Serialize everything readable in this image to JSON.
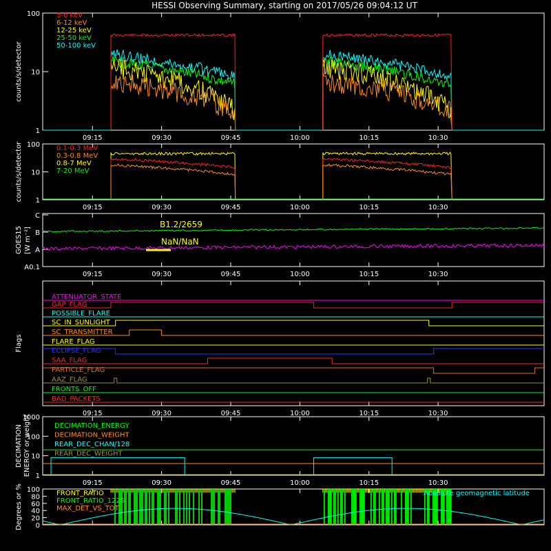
{
  "title": "HESSI Observing Summary, starting on 2017/05/26 09:04:12 UT",
  "time_ticks": [
    "09:15",
    "09:30",
    "09:45",
    "10:00",
    "10:15",
    "10:30"
  ],
  "colors": {
    "red": "#ff2020",
    "orange": "#ff8c1a",
    "yellow": "#ffff00",
    "green": "#00ff00",
    "cyan": "#00ffff",
    "magenta": "#ff00ff",
    "blue": "#2233ff",
    "olive": "#a09030",
    "frame": "#ffffff",
    "brown": "#e07020"
  },
  "chart_data": [
    {
      "type": "line",
      "ylabel": "counts/s/detector",
      "y_ticks": [
        "100",
        "10",
        "1"
      ],
      "ylim": [
        1,
        100
      ],
      "scale": "log",
      "legend_placement": "top-left",
      "series": [
        {
          "name": "3-6 keV",
          "color": "#ff2020",
          "level": 42,
          "segments": [
            [
              "09:19",
              "09:46"
            ],
            [
              "10:05",
              "10:33"
            ]
          ]
        },
        {
          "name": "6-12 keV",
          "color": "#ff8c1a",
          "level_start": 7,
          "level_end": 2,
          "segments": [
            [
              "09:19",
              "09:46"
            ],
            [
              "10:05",
              "10:33"
            ]
          ]
        },
        {
          "name": "12-25 keV",
          "color": "#ffff00",
          "level_start": 12,
          "level_end": 2,
          "segments": [
            [
              "09:19",
              "09:46"
            ],
            [
              "10:05",
              "10:33"
            ]
          ]
        },
        {
          "name": "25-50 keV",
          "color": "#00ff00",
          "level_start": 15,
          "level_end": 6,
          "segments": [
            [
              "09:19",
              "09:46"
            ],
            [
              "10:05",
              "10:33"
            ]
          ]
        },
        {
          "name": "50-100 keV",
          "color": "#00ffff",
          "level_start": 20,
          "level_end": 8,
          "segments": [
            [
              "09:19",
              "09:46"
            ],
            [
              "10:05",
              "10:33"
            ]
          ]
        }
      ]
    },
    {
      "type": "line",
      "ylabel": "counts/s/detector",
      "y_ticks": [
        "100",
        "10",
        "1"
      ],
      "ylim": [
        1,
        100
      ],
      "scale": "log",
      "legend_placement": "top-left",
      "series": [
        {
          "name": "0.1-0.3 MeV",
          "color": "#ff2020",
          "level_start": 30,
          "level_end": 14,
          "segments": [
            [
              "09:19",
              "09:46"
            ],
            [
              "10:05",
              "10:33"
            ]
          ]
        },
        {
          "name": "0.3-0.8 MeV",
          "color": "#ff8c1a",
          "level_start": 18,
          "level_end": 8,
          "segments": [
            [
              "09:19",
              "09:46"
            ],
            [
              "10:05",
              "10:33"
            ]
          ]
        },
        {
          "name": "0.8-7 MeV",
          "color": "#ffff00",
          "level": 45,
          "segments": [
            [
              "09:19",
              "09:46"
            ],
            [
              "10:05",
              "10:33"
            ]
          ]
        },
        {
          "name": "7-20 MeV",
          "color": "#00ff00",
          "level": 1,
          "segments": [
            [
              "09:04",
              "10:53"
            ]
          ]
        }
      ]
    },
    {
      "type": "line",
      "ylabel": "GOES15",
      "ylabel_units": "[W m⁻²]",
      "y_ticks": [
        "C",
        "B",
        "A",
        "A0.1"
      ],
      "annotations": [
        "B1.2/2659",
        "NaN/NaN"
      ],
      "series": [
        {
          "name": "long channel",
          "color": "#00ff00",
          "level": "B"
        },
        {
          "name": "short channel",
          "color": "#ff00ff",
          "level": "A"
        }
      ]
    },
    {
      "type": "table",
      "ylabel": "Flags",
      "flags": [
        {
          "name": "ATTENUATOR_STATE",
          "color": "#ff00ff"
        },
        {
          "name": "GAP_FLAG",
          "color": "#ff2020"
        },
        {
          "name": "POSSIBLE_FLARE",
          "color": "#00ffff"
        },
        {
          "name": "SC_IN_SUNLIGHT",
          "color": "#ffff00"
        },
        {
          "name": "SC_TRANSMITTER",
          "color": "#ff8c1a"
        },
        {
          "name": "FLARE_FLAG",
          "color": "#ffff00"
        },
        {
          "name": "ECLIPSE_FLAG",
          "color": "#2233ff"
        },
        {
          "name": "SAA_FLAG",
          "color": "#ff2020"
        },
        {
          "name": "PARTICLE_FLAG",
          "color": "#e07020"
        },
        {
          "name": "AAZ_FLAG",
          "color": "#a09030"
        },
        {
          "name": "FRONTS_OFF",
          "color": "#00ff00"
        },
        {
          "name": "BAD_PACKETS",
          "color": "#ff2020"
        }
      ]
    },
    {
      "type": "line",
      "ylabel": "DECIMATION",
      "ylabel2": "ENERGY or weight",
      "y_ticks": [
        "1000",
        "100",
        "10",
        "1"
      ],
      "ylim": [
        1,
        1000
      ],
      "scale": "log",
      "series": [
        {
          "name": "DECIMATION_ENERGY",
          "color": "#00ff00",
          "level": 20
        },
        {
          "name": "DECIMATION_WEIGHT",
          "color": "#ff8c1a",
          "level": 4
        },
        {
          "name": "REAR_DEC_CHAN/128",
          "color": "#00ffff",
          "level": 8
        },
        {
          "name": "REAR_DEC_WEIGHT",
          "color": "#a09030",
          "level": 1
        }
      ]
    },
    {
      "type": "line",
      "ylabel": "Degrees or %",
      "y_ticks": [
        "100",
        "80",
        "60",
        "40",
        "20",
        "0"
      ],
      "ylim": [
        0,
        100
      ],
      "series": [
        {
          "name": "FRONT_RATIO",
          "color": "#ffff00"
        },
        {
          "name": "FRONT_RATIO_1225",
          "color": "#00ff00"
        },
        {
          "name": "MAX_DET_VS_TOT",
          "color": "#ff8c1a"
        },
        {
          "name": "Absolute geomagnetic latitude",
          "color": "#00ffff"
        }
      ]
    }
  ]
}
